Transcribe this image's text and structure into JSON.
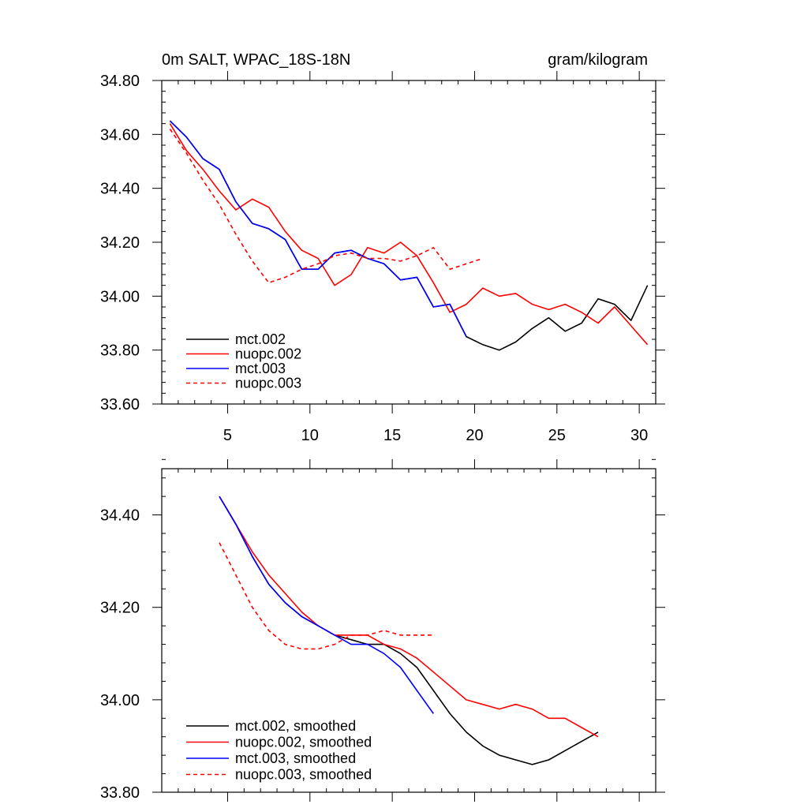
{
  "chart_data": [
    {
      "type": "line",
      "title": "0m SALT, WPAC_18S-18N",
      "units": "gram/kilogram",
      "xlabel": "",
      "ylabel": "",
      "xlim": [
        1,
        31
      ],
      "ylim": [
        33.6,
        34.8
      ],
      "x_ticks": [
        5,
        10,
        15,
        20,
        25,
        30
      ],
      "x_tick_labels": [
        "5",
        "10",
        "15",
        "20",
        "25",
        "30"
      ],
      "y_ticks": [
        33.6,
        33.8,
        34.0,
        34.2,
        34.4,
        34.6,
        34.8
      ],
      "y_tick_labels": [
        "33.60",
        "33.80",
        "34.00",
        "34.20",
        "34.40",
        "34.60",
        "34.80"
      ],
      "legend_position": "bottom-left",
      "series": [
        {
          "name": "mct.002",
          "color": "#000000",
          "dash": "solid",
          "x": [
            1.5,
            2.5,
            3.5,
            4.5,
            5.5,
            6.5,
            7.5,
            8.5,
            9.5,
            10.5,
            11.5,
            12.5,
            13.5,
            14.5,
            15.5,
            16.5,
            17.5,
            18.5,
            19.5,
            20.5,
            21.5,
            22.5,
            23.5,
            24.5,
            25.5,
            26.5,
            27.5,
            28.5,
            29.5,
            30.5
          ],
          "values": [
            34.65,
            34.59,
            34.51,
            34.47,
            34.35,
            34.27,
            34.25,
            34.21,
            34.1,
            34.1,
            34.16,
            34.17,
            34.14,
            34.12,
            34.06,
            34.07,
            33.96,
            33.97,
            33.85,
            33.82,
            33.8,
            33.83,
            33.88,
            33.92,
            33.87,
            33.9,
            33.99,
            33.97,
            33.91,
            34.04
          ]
        },
        {
          "name": "nuopc.002",
          "color": "#ff0000",
          "dash": "solid",
          "x": [
            1.5,
            2.5,
            3.5,
            4.5,
            5.5,
            6.5,
            7.5,
            8.5,
            9.5,
            10.5,
            11.5,
            12.5,
            13.5,
            14.5,
            15.5,
            16.5,
            17.5,
            18.5,
            19.5,
            20.5,
            21.5,
            22.5,
            23.5,
            24.5,
            25.5,
            26.5,
            27.5,
            28.5,
            29.5,
            30.5
          ],
          "values": [
            34.64,
            34.54,
            34.47,
            34.39,
            34.32,
            34.36,
            34.33,
            34.24,
            34.17,
            34.14,
            34.04,
            34.08,
            34.18,
            34.16,
            34.2,
            34.15,
            34.05,
            33.94,
            33.97,
            34.03,
            34.0,
            34.01,
            33.97,
            33.95,
            33.97,
            33.94,
            33.9,
            33.96,
            33.89,
            33.82
          ]
        },
        {
          "name": "mct.003",
          "color": "#0000ff",
          "dash": "solid",
          "x": [
            1.5,
            2.5,
            3.5,
            4.5,
            5.5,
            6.5,
            7.5,
            8.5,
            9.5,
            10.5,
            11.5,
            12.5,
            13.5,
            14.5,
            15.5,
            16.5,
            17.5,
            18.5,
            19.5
          ],
          "values": [
            34.65,
            34.59,
            34.51,
            34.47,
            34.35,
            34.27,
            34.25,
            34.21,
            34.1,
            34.1,
            34.16,
            34.17,
            34.14,
            34.12,
            34.06,
            34.07,
            33.96,
            33.97,
            33.85
          ]
        },
        {
          "name": "nuopc.003",
          "color": "#ff0000",
          "dash": "dashed",
          "x": [
            1.5,
            2.5,
            3.5,
            4.5,
            5.5,
            6.5,
            7.5,
            8.5,
            9.5,
            10.5,
            11.5,
            12.5,
            13.5,
            14.5,
            15.5,
            16.5,
            17.5,
            18.5,
            19.5,
            20.5
          ],
          "values": [
            34.62,
            34.53,
            34.43,
            34.34,
            34.23,
            34.13,
            34.05,
            34.07,
            34.1,
            34.12,
            34.15,
            34.16,
            34.14,
            34.14,
            34.13,
            34.15,
            34.18,
            34.1,
            34.12,
            34.14
          ]
        }
      ]
    },
    {
      "type": "line",
      "title": "",
      "xlabel": "",
      "ylabel": "",
      "xlim": [
        1,
        31
      ],
      "ylim": [
        33.8,
        34.5
      ],
      "x_ticks": [
        5,
        10,
        15,
        20,
        25,
        30
      ],
      "x_tick_labels": [],
      "y_ticks": [
        33.8,
        34.0,
        34.2,
        34.4
      ],
      "y_tick_labels": [
        "33.80",
        "34.00",
        "34.20",
        "34.40"
      ],
      "legend_position": "bottom-left",
      "series": [
        {
          "name": "mct.002, smoothed",
          "color": "#000000",
          "dash": "solid",
          "x": [
            4.5,
            5.5,
            6.5,
            7.5,
            8.5,
            9.5,
            10.5,
            11.5,
            12.5,
            13.5,
            14.5,
            15.5,
            16.5,
            17.5,
            18.5,
            19.5,
            20.5,
            21.5,
            22.5,
            23.5,
            24.5,
            25.5,
            26.5,
            27.5
          ],
          "values": [
            34.44,
            34.38,
            34.31,
            34.25,
            34.21,
            34.18,
            34.16,
            34.14,
            34.13,
            34.12,
            34.12,
            34.1,
            34.07,
            34.02,
            33.97,
            33.93,
            33.9,
            33.88,
            33.87,
            33.86,
            33.87,
            33.89,
            33.91,
            33.93
          ]
        },
        {
          "name": "nuopc.002, smoothed",
          "color": "#ff0000",
          "dash": "solid",
          "x": [
            4.5,
            5.5,
            6.5,
            7.5,
            8.5,
            9.5,
            10.5,
            11.5,
            12.5,
            13.5,
            14.5,
            15.5,
            16.5,
            17.5,
            18.5,
            19.5,
            20.5,
            21.5,
            22.5,
            23.5,
            24.5,
            25.5,
            26.5,
            27.5
          ],
          "values": [
            34.44,
            34.38,
            34.32,
            34.27,
            34.23,
            34.19,
            34.16,
            34.14,
            34.14,
            34.14,
            34.12,
            34.11,
            34.09,
            34.06,
            34.03,
            34.0,
            33.99,
            33.98,
            33.99,
            33.98,
            33.96,
            33.96,
            33.94,
            33.92
          ]
        },
        {
          "name": "mct.003, smoothed",
          "color": "#0000ff",
          "dash": "solid",
          "x": [
            4.5,
            5.5,
            6.5,
            7.5,
            8.5,
            9.5,
            10.5,
            11.5,
            12.5,
            13.5,
            14.5,
            15.5,
            16.5,
            17.5
          ],
          "values": [
            34.44,
            34.38,
            34.31,
            34.25,
            34.21,
            34.18,
            34.16,
            34.14,
            34.12,
            34.12,
            34.1,
            34.07,
            34.02,
            33.97
          ]
        },
        {
          "name": "nuopc.003, smoothed",
          "color": "#ff0000",
          "dash": "dashed",
          "x": [
            4.5,
            5.5,
            6.5,
            7.5,
            8.5,
            9.5,
            10.5,
            11.5,
            12.5,
            13.5,
            14.5,
            15.5,
            16.5,
            17.5
          ],
          "values": [
            34.34,
            34.27,
            34.2,
            34.15,
            34.12,
            34.11,
            34.11,
            34.12,
            34.14,
            34.14,
            34.15,
            34.14,
            34.14,
            34.14
          ]
        }
      ]
    }
  ]
}
